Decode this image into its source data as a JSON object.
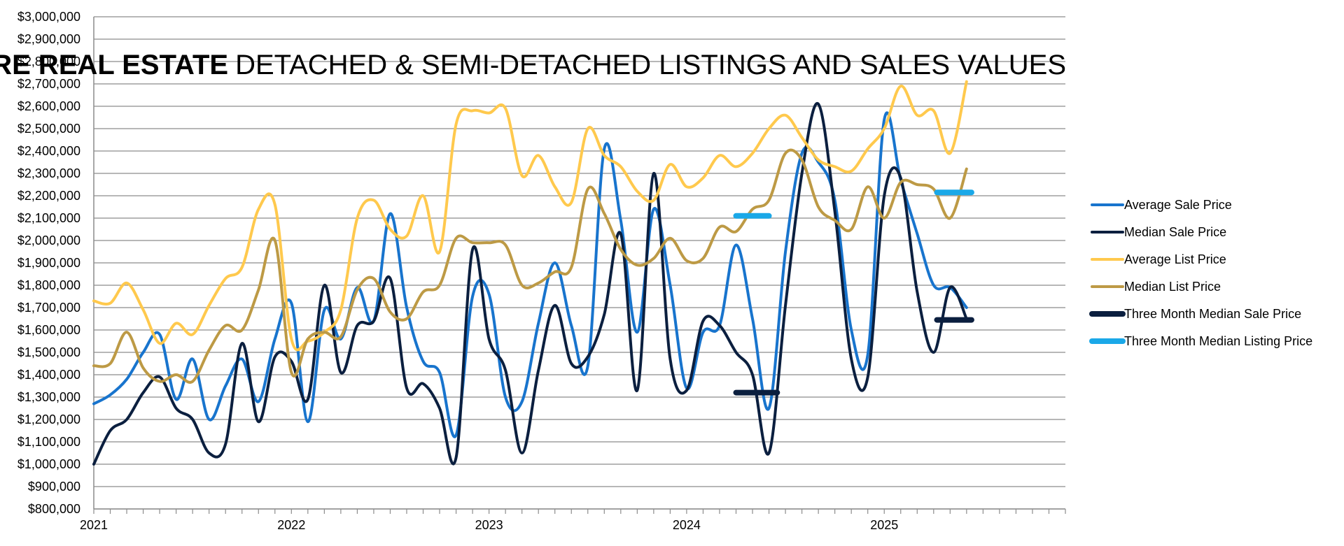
{
  "chart_data": {
    "type": "line",
    "title": {
      "bold": "CANMORE REAL ESTATE",
      "regular": "DETACHED & SEMI-DETACHED LISTINGS AND SALES VALUES"
    },
    "xlabel": "",
    "ylabel": "",
    "x_tick_labels": [
      "2021",
      "2022",
      "2023",
      "2024",
      "2025"
    ],
    "y_tick_labels": [
      "$800,000",
      "$900,000",
      "$1,000,000",
      "$1,100,000",
      "$1,200,000",
      "$1,300,000",
      "$1,400,000",
      "$1,500,000",
      "$1,600,000",
      "$1,700,000",
      "$1,800,000",
      "$1,900,000",
      "$2,000,000",
      "$2,100,000",
      "$2,200,000",
      "$2,300,000",
      "$2,400,000",
      "$2,500,000",
      "$2,600,000",
      "$2,700,000",
      "$2,800,000",
      "$2,900,000",
      "$3,000,000"
    ],
    "ylim": [
      800000,
      3000000
    ],
    "xlim_months": [
      0,
      59
    ],
    "grid": true,
    "legend_position": "right",
    "x_months": [
      0,
      1,
      2,
      3,
      4,
      5,
      6,
      7,
      8,
      9,
      10,
      11,
      12,
      13,
      14,
      15,
      16,
      17,
      18,
      19,
      20,
      21,
      22,
      23,
      24,
      25,
      26,
      27,
      28,
      29,
      30,
      31,
      32,
      33,
      34,
      35,
      36,
      37,
      38,
      39,
      40,
      41,
      42,
      43,
      44,
      45,
      46,
      47,
      48,
      49,
      50,
      51,
      52,
      53
    ],
    "series": [
      {
        "name": "Average Sale Price",
        "color": "#1874CD",
        "width": 4,
        "values": [
          1270000,
          1310000,
          1380000,
          1500000,
          1580000,
          1290000,
          1470000,
          1200000,
          1350000,
          1470000,
          1280000,
          1560000,
          1720000,
          1190000,
          1690000,
          1560000,
          1790000,
          1640000,
          2120000,
          1700000,
          1460000,
          1410000,
          1130000,
          1750000,
          1760000,
          1300000,
          1280000,
          1630000,
          1900000,
          1620000,
          1440000,
          2410000,
          2090000,
          1590000,
          2140000,
          1800000,
          1340000,
          1590000,
          1620000,
          1980000,
          1650000,
          1250000,
          1950000,
          2390000,
          2350000,
          2180000,
          1600000,
          1490000,
          2540000,
          2270000,
          2030000,
          1800000,
          1790000,
          1700000
        ]
      },
      {
        "name": "Median Sale Price",
        "color": "#0B1F3F",
        "width": 4,
        "values": [
          1000000,
          1150000,
          1200000,
          1320000,
          1390000,
          1250000,
          1200000,
          1050000,
          1090000,
          1540000,
          1190000,
          1480000,
          1460000,
          1290000,
          1800000,
          1410000,
          1620000,
          1640000,
          1830000,
          1340000,
          1360000,
          1250000,
          1030000,
          1960000,
          1560000,
          1420000,
          1050000,
          1420000,
          1710000,
          1450000,
          1480000,
          1670000,
          2030000,
          1330000,
          2300000,
          1470000,
          1330000,
          1640000,
          1620000,
          1500000,
          1400000,
          1050000,
          1710000,
          2300000,
          2610000,
          2130000,
          1470000,
          1390000,
          2200000,
          2280000,
          1770000,
          1500000,
          1790000,
          1650000
        ]
      },
      {
        "name": "Average List Price",
        "color": "#FFC94D",
        "width": 4,
        "values": [
          1730000,
          1720000,
          1810000,
          1690000,
          1540000,
          1630000,
          1580000,
          1710000,
          1830000,
          1880000,
          2140000,
          2160000,
          1560000,
          1550000,
          1590000,
          1690000,
          2100000,
          2180000,
          2050000,
          2020000,
          2200000,
          1950000,
          2520000,
          2580000,
          2570000,
          2590000,
          2290000,
          2380000,
          2240000,
          2170000,
          2500000,
          2380000,
          2330000,
          2220000,
          2180000,
          2340000,
          2240000,
          2280000,
          2380000,
          2330000,
          2390000,
          2500000,
          2560000,
          2460000,
          2360000,
          2330000,
          2310000,
          2410000,
          2500000,
          2690000,
          2560000,
          2580000,
          2390000,
          2710000
        ]
      },
      {
        "name": "Median List Price",
        "color": "#BD9A45",
        "width": 4,
        "values": [
          1440000,
          1450000,
          1590000,
          1430000,
          1370000,
          1400000,
          1370000,
          1510000,
          1620000,
          1600000,
          1780000,
          2000000,
          1410000,
          1560000,
          1590000,
          1570000,
          1780000,
          1830000,
          1680000,
          1650000,
          1770000,
          1800000,
          2010000,
          1990000,
          1990000,
          1980000,
          1800000,
          1810000,
          1860000,
          1880000,
          2230000,
          2120000,
          1960000,
          1890000,
          1920000,
          2010000,
          1910000,
          1920000,
          2060000,
          2040000,
          2140000,
          2180000,
          2390000,
          2360000,
          2150000,
          2090000,
          2050000,
          2240000,
          2100000,
          2260000,
          2250000,
          2230000,
          2100000,
          2320000
        ]
      },
      {
        "name": "Three Month Median Sale Price",
        "color": "#0B1F3F",
        "width": 8,
        "segments": [
          {
            "x": [
              39,
              41.5
            ],
            "value": 1320000
          },
          {
            "x": [
              51.2,
              53.3
            ],
            "value": 1645000
          }
        ]
      },
      {
        "name": "Three Month Median Listing Price",
        "color": "#1AA8E8",
        "width": 8,
        "segments": [
          {
            "x": [
              39,
              41
            ],
            "value": 2110000
          },
          {
            "x": [
              51.2,
              53.3
            ],
            "value": 2215000
          }
        ]
      }
    ]
  }
}
